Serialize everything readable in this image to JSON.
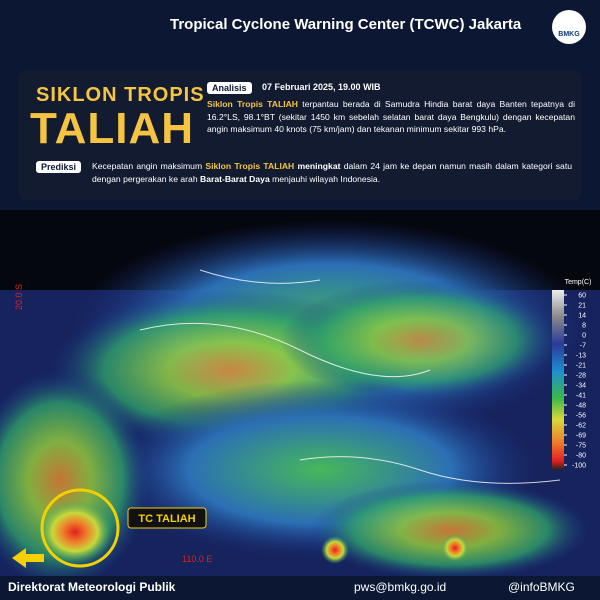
{
  "header": {
    "title": "Tropical Cyclone Warning Center (TCWC) Jakarta",
    "logo": "BMKG"
  },
  "info": {
    "kicker": "SIKLON TROPIS",
    "name": "TALIAH",
    "analysis": {
      "label": "Analisis",
      "date": "07 Februari 2025, 19.00 WIB",
      "segments": [
        "Siklon Tropis TALIAH",
        " terpantau berada di Samudra Hindia barat daya Banten tepatnya di 16.2°LS, 98.1°BT (sekitar 1450 km sebelah selatan barat daya Bengkulu) dengan kecepatan angin maksimum 40 knots (75 km/jam) dan tekanan minimum sekitar 993 hPa."
      ]
    },
    "prediction": {
      "label": "Prediksi",
      "segments": [
        "Kecepatan angin maksimum ",
        "Siklon Tropis TALIAH",
        " meningkat",
        " dalam 24 jam ke depan namun masih dalam kategori satu dengan pergerakan  ke arah ",
        "Barat-Barat Daya",
        " menjauhi wilayah Indonesia."
      ]
    }
  },
  "map": {
    "lat_label": "20.0 S",
    "lon_label": "110.0 E",
    "storm_label": "TC TALIAH",
    "legend": {
      "title": "Temp(C)",
      "ticks": [
        60,
        21,
        14,
        8,
        0,
        -7,
        -13,
        -21,
        -28,
        -34,
        -41,
        -48,
        -56,
        -62,
        -69,
        -75,
        -80,
        -100
      ]
    }
  },
  "footer": {
    "org": "Direktorat Meteorologi Publik",
    "email": "pws@bmkg.go.id",
    "social": "@infoBMKG"
  }
}
